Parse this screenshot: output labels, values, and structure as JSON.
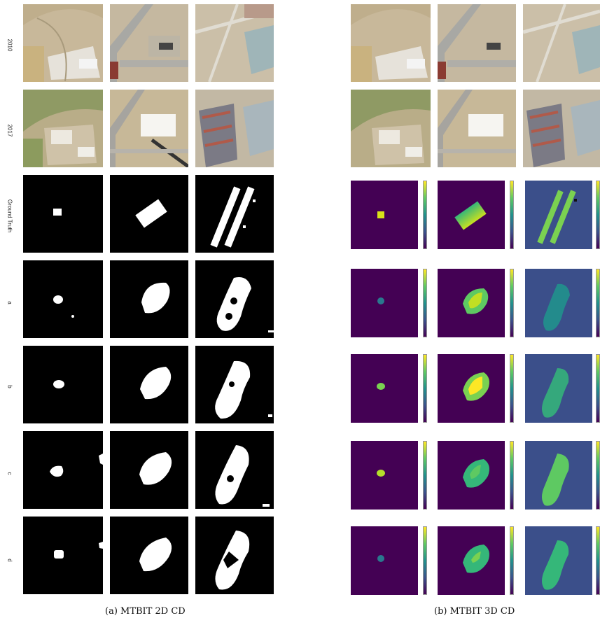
{
  "figure": {
    "left_panel": {
      "caption": "(a) MTBIT 2D CD",
      "row_labels": [
        "2010",
        "2017",
        "Ground Truth",
        "a",
        "b",
        "c",
        "d"
      ]
    },
    "right_panel": {
      "caption": "(b) MTBIT 3D CD"
    },
    "colors": {
      "background": "#000000",
      "change": "#ffffff",
      "heatmap_low": "#440154",
      "heatmap_bg_col3": "#3b4f8a",
      "heatmap_high": "#fde725"
    }
  }
}
